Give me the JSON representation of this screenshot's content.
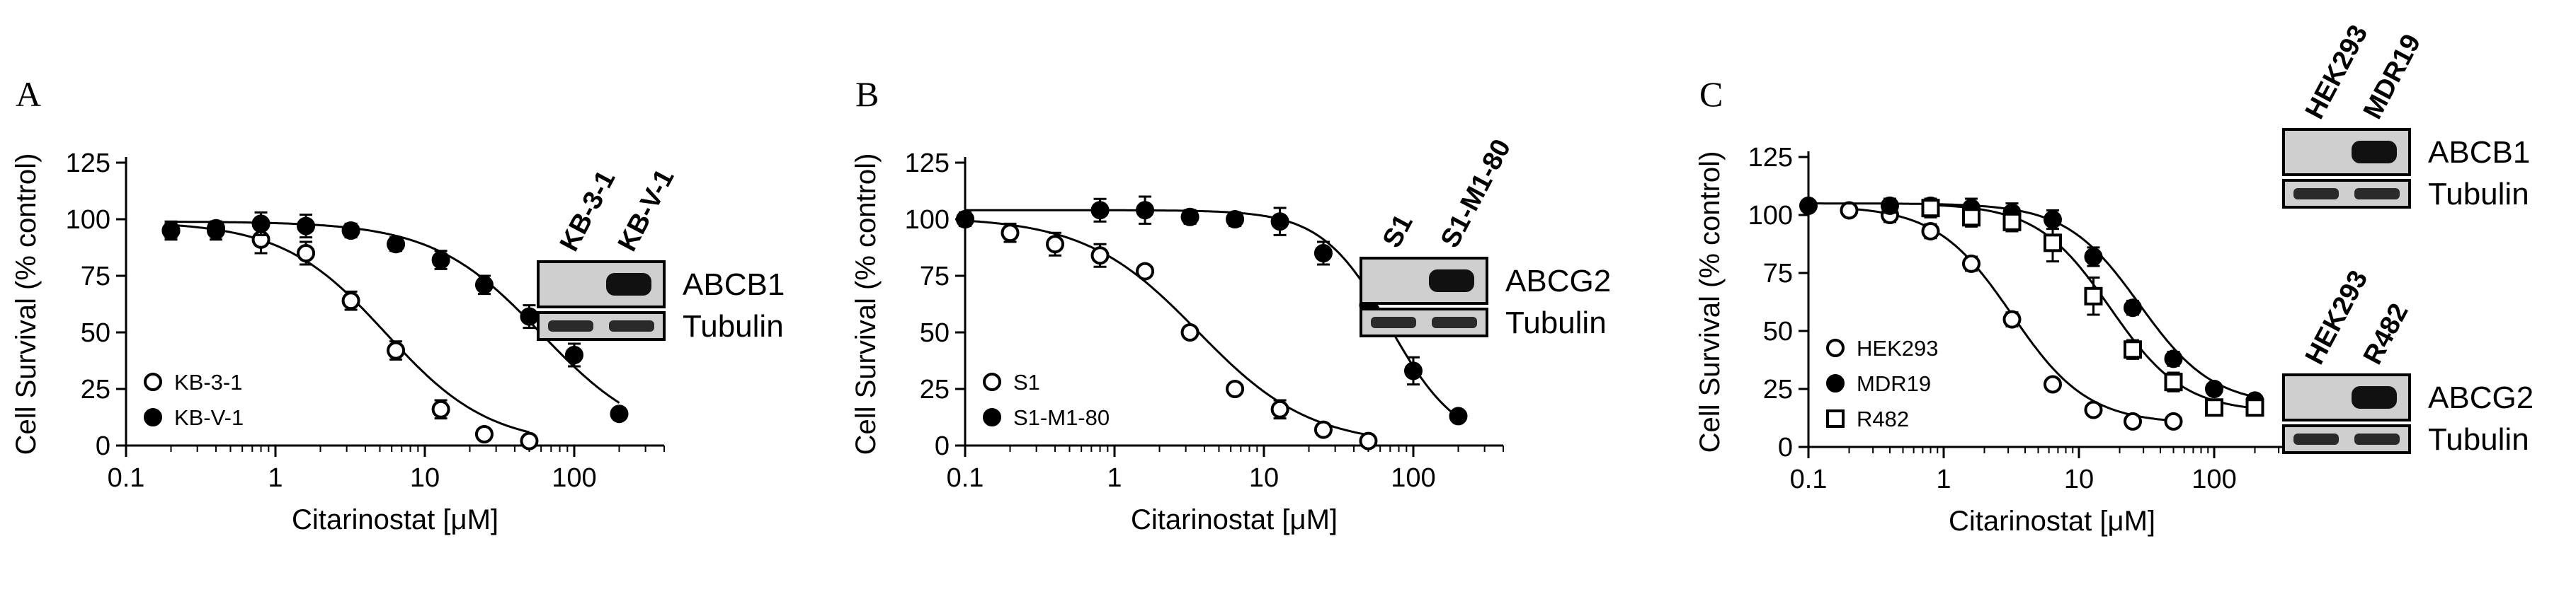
{
  "chart_data": [
    {
      "type": "scatter",
      "panel_label": "A",
      "xlabel": "Citarinostat [μM]",
      "ylabel": "Cell Survival (% control)",
      "xscale": "log",
      "xlim": [
        0.1,
        400
      ],
      "ylim": [
        0,
        125
      ],
      "x_ticks": [
        "0.1",
        "1",
        "10",
        "100"
      ],
      "y_ticks": [
        "0",
        "25",
        "50",
        "75",
        "100",
        "125"
      ],
      "grid": false,
      "legend_position": "bottom-left",
      "series": [
        {
          "name": "KB-3-1",
          "marker": "open-circle",
          "x": [
            0.2,
            0.4,
            0.8,
            1.6,
            3.2,
            6.4,
            12.8,
            25,
            50
          ],
          "y": [
            95,
            95,
            91,
            85,
            64,
            42,
            16,
            5,
            2
          ],
          "err": [
            4,
            4,
            6,
            5,
            4,
            4,
            4,
            1,
            1
          ],
          "ec50": 5.5,
          "top": 99,
          "bottom": 0,
          "hill": 1.25
        },
        {
          "name": "KB-V-1",
          "marker": "filled-circle",
          "x": [
            0.2,
            0.4,
            0.8,
            1.6,
            3.2,
            6.4,
            12.8,
            25,
            50,
            100,
            200
          ],
          "y": [
            95,
            96,
            98,
            97,
            95,
            89,
            82,
            71,
            57,
            40,
            14
          ],
          "err": [
            3,
            3,
            5,
            5,
            3,
            3,
            4,
            4,
            5,
            5,
            2
          ],
          "ec50": 60,
          "top": 99,
          "bottom": 0,
          "hill": 1.2
        }
      ],
      "blots": [
        {
          "lanes": [
            "KB-3-1",
            "KB-V-1"
          ],
          "rows": [
            {
              "label": "ABCB1",
              "band": "second"
            },
            {
              "label": "Tubulin",
              "band": "both"
            }
          ]
        }
      ]
    },
    {
      "type": "scatter",
      "panel_label": "B",
      "xlabel": "Citarinostat [μM]",
      "ylabel": "Cell Survival (% control)",
      "xscale": "log",
      "xlim": [
        0.1,
        400
      ],
      "ylim": [
        0,
        125
      ],
      "x_ticks": [
        "0.1",
        "1",
        "10",
        "100"
      ],
      "y_ticks": [
        "0",
        "25",
        "50",
        "75",
        "100",
        "125"
      ],
      "grid": false,
      "legend_position": "bottom-left",
      "series": [
        {
          "name": "S1",
          "marker": "open-circle",
          "x": [
            0.1,
            0.2,
            0.4,
            0.8,
            1.6,
            3.2,
            6.4,
            12.8,
            25,
            50
          ],
          "y": [
            100,
            94,
            89,
            84,
            77,
            50,
            25,
            16,
            7,
            2
          ],
          "err": [
            3,
            4,
            5,
            5,
            2,
            2,
            2,
            4,
            2,
            1
          ],
          "ec50": 3.6,
          "top": 101,
          "bottom": 0,
          "hill": 1.15
        },
        {
          "name": "S1-M1-80",
          "marker": "filled-circle",
          "x": [
            0.1,
            0.8,
            1.6,
            3.2,
            6.4,
            12.8,
            25,
            50,
            100,
            200
          ],
          "y": [
            100,
            104,
            104,
            101,
            100,
            99,
            85,
            62,
            33,
            13
          ],
          "err": [
            2,
            5,
            6,
            3,
            3,
            6,
            5,
            5,
            6,
            2
          ],
          "ec50": 70,
          "top": 104,
          "bottom": 0,
          "hill": 1.9
        }
      ],
      "blots": [
        {
          "lanes": [
            "S1",
            "S1-M1-80"
          ],
          "rows": [
            {
              "label": "ABCG2",
              "band": "second"
            },
            {
              "label": "Tubulin",
              "band": "both"
            }
          ]
        }
      ]
    },
    {
      "type": "scatter",
      "panel_label": "C",
      "xlabel": "Citarinostat [μM]",
      "ylabel": "Cell Survival (% control)",
      "xscale": "log",
      "xlim": [
        0.1,
        400
      ],
      "ylim": [
        0,
        125
      ],
      "x_ticks": [
        "0.1",
        "1",
        "10",
        "100"
      ],
      "y_ticks": [
        "0",
        "25",
        "50",
        "75",
        "100",
        "125"
      ],
      "grid": false,
      "legend_position": "bottom-left",
      "series": [
        {
          "name": "HEK293",
          "marker": "open-circle",
          "x": [
            0.2,
            0.4,
            0.8,
            1.6,
            3.2,
            6.4,
            12.8,
            25,
            50
          ],
          "y": [
            102,
            100,
            93,
            79,
            55,
            27,
            16,
            11,
            11
          ],
          "err": [
            2,
            3,
            3,
            3,
            3,
            2,
            1,
            1,
            1
          ],
          "ec50": 3.2,
          "top": 104,
          "bottom": 10,
          "hill": 1.55
        },
        {
          "name": "MDR19",
          "marker": "filled-circle",
          "x": [
            0.1,
            0.4,
            0.8,
            1.6,
            3.2,
            6.4,
            12.8,
            25,
            50,
            100,
            200
          ],
          "y": [
            104,
            104,
            104,
            103,
            101,
            98,
            82,
            60,
            38,
            25,
            20
          ],
          "err": [
            2,
            3,
            3,
            4,
            4,
            4,
            4,
            3,
            3,
            2,
            2
          ],
          "ec50": 28,
          "top": 105,
          "bottom": 18,
          "hill": 1.6
        },
        {
          "name": "R482",
          "marker": "open-square",
          "x": [
            0.8,
            1.6,
            3.2,
            6.4,
            12.8,
            25,
            50,
            100,
            200
          ],
          "y": [
            103,
            99,
            97,
            88,
            65,
            42,
            28,
            17,
            17
          ],
          "err": [
            4,
            4,
            4,
            8,
            8,
            4,
            4,
            3,
            3
          ],
          "ec50": 17,
          "top": 105,
          "bottom": 15,
          "hill": 1.6
        }
      ],
      "blots": [
        {
          "lanes": [
            "HEK293",
            "MDR19"
          ],
          "rows": [
            {
              "label": "ABCB1",
              "band": "second"
            },
            {
              "label": "Tubulin",
              "band": "both"
            }
          ]
        },
        {
          "lanes": [
            "HEK293",
            "R482"
          ],
          "rows": [
            {
              "label": "ABCG2",
              "band": "second"
            },
            {
              "label": "Tubulin",
              "band": "both"
            }
          ]
        }
      ]
    }
  ]
}
